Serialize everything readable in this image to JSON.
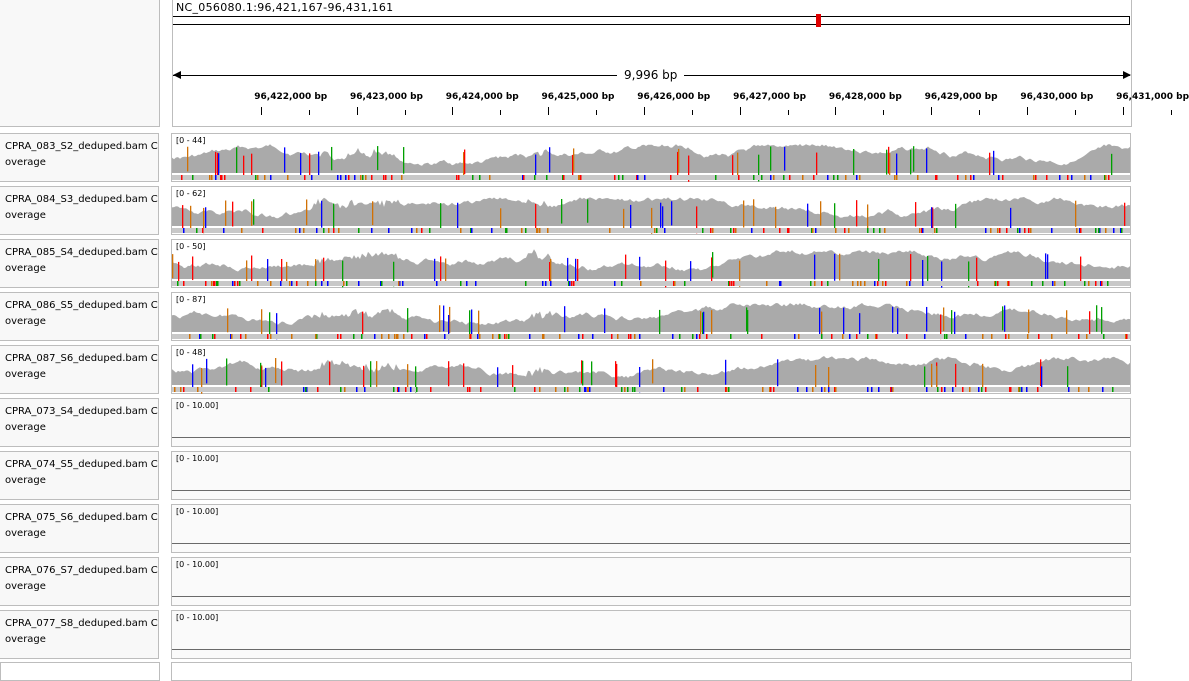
{
  "locus": "NC_056080.1:96,421,167-96,431,161",
  "span_label": "9,996 bp",
  "ruler_ticks": [
    "96,422,000 bp",
    "96,423,000 bp",
    "96,424,000 bp",
    "96,425,000 bp",
    "96,426,000 bp",
    "96,427,000 bp",
    "96,428,000 bp",
    "96,429,000 bp",
    "96,430,000 bp",
    "96,431,000 bp"
  ],
  "tracks": [
    {
      "name": "CPRA_083_S2_deduped.bam Coverage",
      "range": "[0 - 44]",
      "has_data": true
    },
    {
      "name": "CPRA_084_S3_deduped.bam Coverage",
      "range": "[0 - 62]",
      "has_data": true
    },
    {
      "name": "CPRA_085_S4_deduped.bam Coverage",
      "range": "[0 - 50]",
      "has_data": true
    },
    {
      "name": "CPRA_086_S5_deduped.bam Coverage",
      "range": "[0 - 87]",
      "has_data": true
    },
    {
      "name": "CPRA_087_S6_deduped.bam Coverage",
      "range": "[0 - 48]",
      "has_data": true
    },
    {
      "name": "CPRA_073_S4_deduped.bam Coverage",
      "range": "[0 - 10.00]",
      "has_data": false
    },
    {
      "name": "CPRA_074_S5_deduped.bam Coverage",
      "range": "[0 - 10.00]",
      "has_data": false
    },
    {
      "name": "CPRA_075_S6_deduped.bam Coverage",
      "range": "[0 - 10.00]",
      "has_data": false
    },
    {
      "name": "CPRA_076_S7_deduped.bam Coverage",
      "range": "[0 - 10.00]",
      "has_data": false
    },
    {
      "name": "CPRA_077_S8_deduped.bam Coverage",
      "range": "[0 - 10.00]",
      "has_data": false
    }
  ],
  "colors": {
    "coverage": "#aaaaaa",
    "allele_a": "#00a000",
    "allele_c": "#0000ff",
    "allele_g": "#d17105",
    "allele_t": "#ff0000",
    "ideogram_mark": "#e00000"
  }
}
